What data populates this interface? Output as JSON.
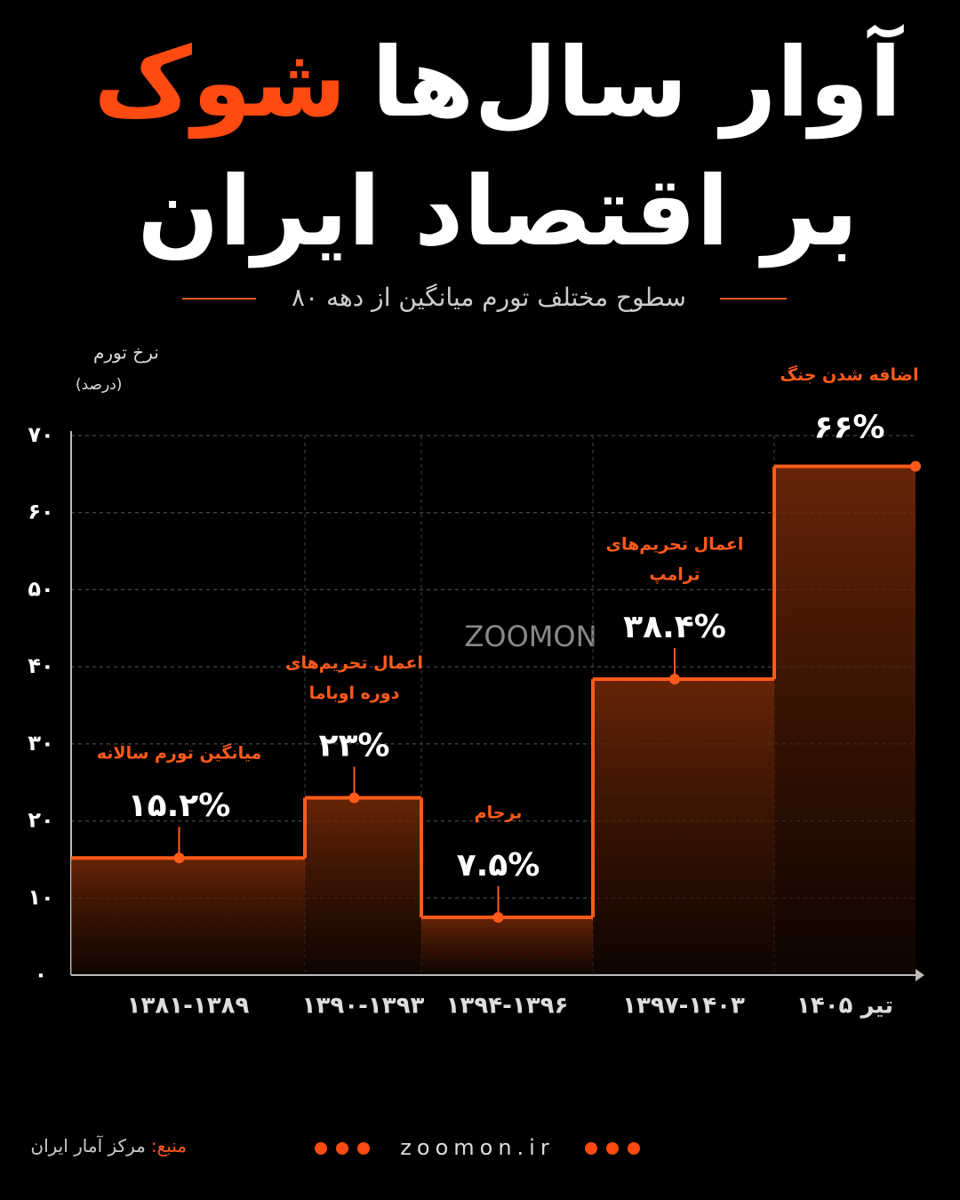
{
  "chart_data": {
    "type": "step",
    "title_line1": [
      "آوار سال‌ها",
      "شوک"
    ],
    "title_line2": "بر اقتصاد ایران",
    "subtitle": "سطوح مختلف تورم میانگین از دهه ۸۰",
    "y_label": [
      "نرخ تورم",
      "(درصد)"
    ],
    "watermark": "ZOOMON",
    "categories": [
      "۱۳۸۱-۱۳۸۹",
      "۱۳۹۰-۱۳۹۳",
      "۱۳۹۴-۱۳۹۶",
      "۱۳۹۷-۱۴۰۳",
      "تیر ۱۴۰۵"
    ],
    "values": [
      15.2,
      23,
      7.5,
      38.4,
      66
    ],
    "value_labels": [
      "۱۵.۲%",
      "۲۳%",
      "۷.۵%",
      "۳۸.۴%",
      "۶۶%"
    ],
    "annotations": [
      [
        "میانگین تورم سالانه"
      ],
      [
        "اعمال تحریم‌های",
        "دوره اوباما"
      ],
      [
        "برجام"
      ],
      [
        "اعمال تحریم‌های",
        "ترامپ"
      ],
      [
        "اضافه شدن جنگ"
      ]
    ],
    "color": "#ff5a1a",
    "ylim": [
      0,
      70
    ],
    "yticks": [
      {
        "value": 0,
        "label": "۰"
      },
      {
        "value": 10,
        "label": "۱۰"
      },
      {
        "value": 20,
        "label": "۲۰"
      },
      {
        "value": 30,
        "label": "۳۰"
      },
      {
        "value": 40,
        "label": "۴۰"
      },
      {
        "value": 50,
        "label": "۵۰"
      },
      {
        "value": 60,
        "label": "۶۰"
      },
      {
        "value": 70,
        "label": "۷۰"
      }
    ],
    "grid": true
  },
  "footer": {
    "source_label": "منبع:",
    "source": "مرکز آمار ایران",
    "website": "zoomon.ir"
  }
}
